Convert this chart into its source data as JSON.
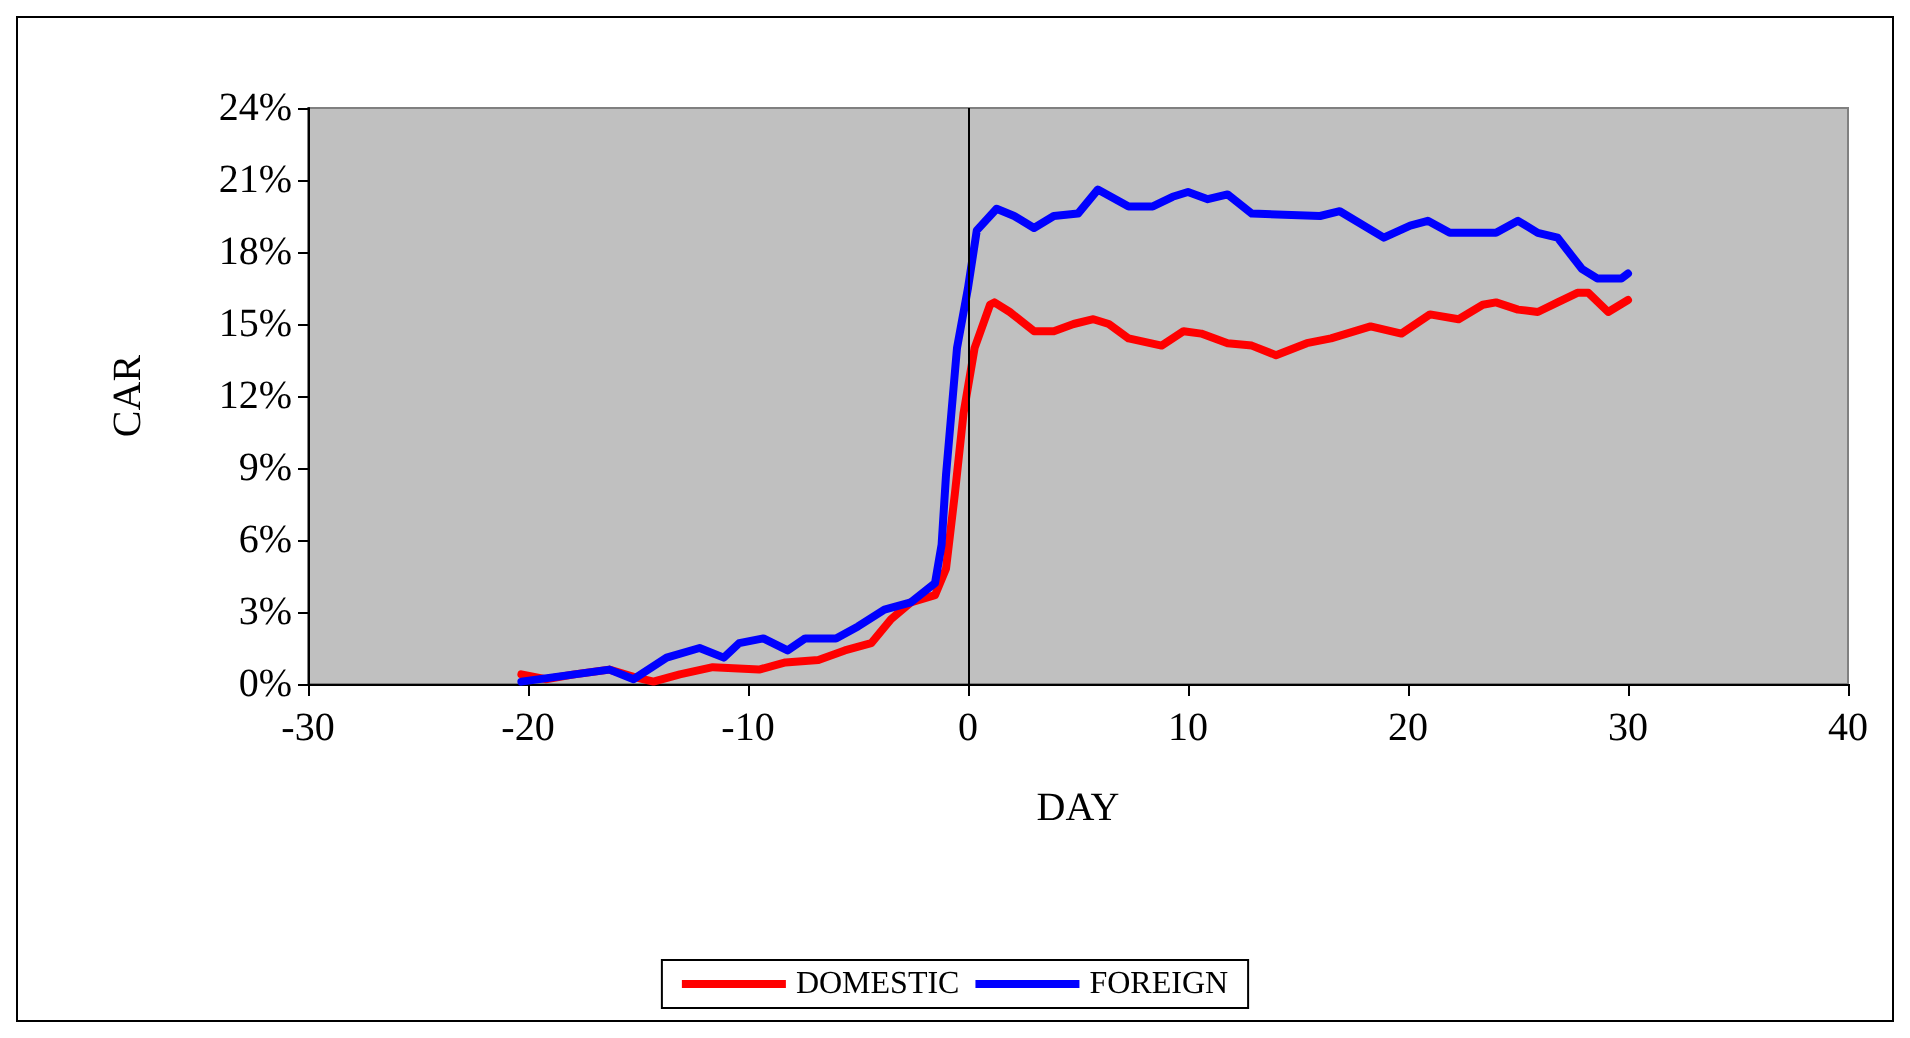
{
  "chart_data": {
    "type": "line",
    "xlabel": "DAY",
    "ylabel": "CAR",
    "xlim": [
      -30,
      40
    ],
    "xticks": [
      -30,
      -20,
      -10,
      0,
      10,
      20,
      30,
      40
    ],
    "ylim": [
      0,
      24
    ],
    "yticks": [
      {
        "value": 0,
        "label": "0%"
      },
      {
        "value": 3,
        "label": "3%"
      },
      {
        "value": 6,
        "label": "6%"
      },
      {
        "value": 9,
        "label": "9%"
      },
      {
        "value": 12,
        "label": "12%"
      },
      {
        "value": 15,
        "label": "15%"
      },
      {
        "value": 18,
        "label": "18%"
      },
      {
        "value": 21,
        "label": "21%"
      },
      {
        "value": 24,
        "label": "24%"
      }
    ],
    "grid": false,
    "legend": "bottom",
    "marker": "none",
    "line_style": "solid",
    "ref_lines": [
      {
        "axis": "x",
        "value": 0,
        "color": "#000000"
      }
    ],
    "series": [
      {
        "name": "DOMESTIC",
        "color": "#ff0000",
        "x": [
          -20.3,
          -19.2,
          -17.9,
          -16.3,
          -15.2,
          -14.3,
          -13.1,
          -11.6,
          -9.5,
          -8.3,
          -6.8,
          -5.6,
          -4.4,
          -3.5,
          -2.6,
          -1.5,
          -1,
          -0.6,
          -0.2,
          0.3,
          1,
          1.2,
          1.9,
          3,
          3.9,
          4.8,
          5.7,
          6.4,
          7.3,
          8.8,
          9.8,
          10.6,
          11.8,
          12.9,
          14,
          15.4,
          16.5,
          18.3,
          19.7,
          21,
          22.3,
          23.4,
          24,
          25,
          25.9,
          26.8,
          27.7,
          28.2,
          29.1,
          30
        ],
        "values": [
          0.4,
          0.2,
          0.4,
          0.6,
          0.3,
          0.1,
          0.4,
          0.7,
          0.6,
          0.9,
          1,
          1.4,
          1.7,
          2.7,
          3.4,
          3.7,
          4.8,
          7.9,
          11.3,
          14,
          15.8,
          15.9,
          15.5,
          14.7,
          14.7,
          15,
          15.2,
          15,
          14.4,
          14.1,
          14.7,
          14.6,
          14.2,
          14.1,
          13.7,
          14.2,
          14.4,
          14.9,
          14.6,
          15.4,
          15.2,
          15.8,
          15.9,
          15.6,
          15.5,
          15.9,
          16.3,
          16.3,
          15.5,
          16
        ]
      },
      {
        "name": "FOREIGN",
        "color": "#0000ff",
        "x": [
          -20.3,
          -16.3,
          -15.2,
          -13.7,
          -12.2,
          -11.1,
          -10.4,
          -9.3,
          -8.2,
          -7.4,
          -6,
          -5,
          -3.8,
          -2.6,
          -1.5,
          -1.2,
          -1,
          -0.5,
          0,
          0.4,
          1.3,
          2.1,
          3,
          3.9,
          5,
          5.9,
          7.3,
          8.4,
          9.3,
          10,
          10.9,
          11.8,
          12.9,
          16,
          16.9,
          18.9,
          20.1,
          20.9,
          21.9,
          24,
          25,
          25.9,
          26.8,
          27.9,
          28.6,
          29.7,
          30
        ],
        "values": [
          0.1,
          0.6,
          0.2,
          1.1,
          1.5,
          1.1,
          1.7,
          1.9,
          1.4,
          1.9,
          1.9,
          2.4,
          3.1,
          3.4,
          4.2,
          5.8,
          8.7,
          14,
          16.5,
          18.9,
          19.8,
          19.5,
          19,
          19.5,
          19.6,
          20.6,
          19.9,
          19.9,
          20.3,
          20.5,
          20.2,
          20.4,
          19.6,
          19.5,
          19.7,
          18.6,
          19.1,
          19.3,
          18.8,
          18.8,
          19.3,
          18.8,
          18.6,
          17.3,
          16.9,
          16.9,
          17.1
        ]
      }
    ]
  }
}
